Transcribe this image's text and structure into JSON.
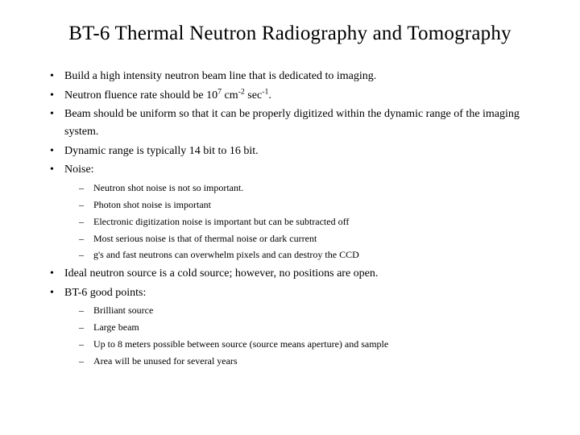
{
  "title": "BT-6 Thermal Neutron Radiography and Tomography",
  "bullets": {
    "b0": "Build a high intensity neutron beam line that is dedicated to imaging.",
    "b1_pre": "Neutron fluence rate should be 10",
    "b1_sup1": "7",
    "b1_mid1": " cm",
    "b1_sup2": "-2",
    "b1_mid2": " sec",
    "b1_sup3": "-1",
    "b1_post": ".",
    "b2": "Beam should be uniform so that it can be properly digitized within the dynamic range of the imaging system.",
    "b3": "Dynamic range is typically 14 bit to 16 bit.",
    "b4": "Noise:",
    "b5": "Ideal neutron source is a cold source; however, no positions are open.",
    "b6": "BT-6 good points:"
  },
  "noise": {
    "n0": "Neutron shot noise is not so important.",
    "n1": "Photon shot noise is important",
    "n2": "Electronic digitization noise is important but can be subtracted off",
    "n3": "Most serious noise is that of thermal noise or dark current",
    "n4_gamma": "g",
    "n4_rest": "'s and fast neutrons can overwhelm pixels and can destroy the CCD"
  },
  "good": {
    "g0": "Brilliant source",
    "g1": "Large beam",
    "g2": "Up to 8 meters possible between source (source means aperture) and sample",
    "g3": "Area will be unused for several years"
  },
  "style": {
    "background": "#ffffff",
    "text_color": "#000000",
    "title_fontsize": 25,
    "body_fontsize": 14,
    "sub_fontsize": 12,
    "font_family": "Times New Roman"
  }
}
